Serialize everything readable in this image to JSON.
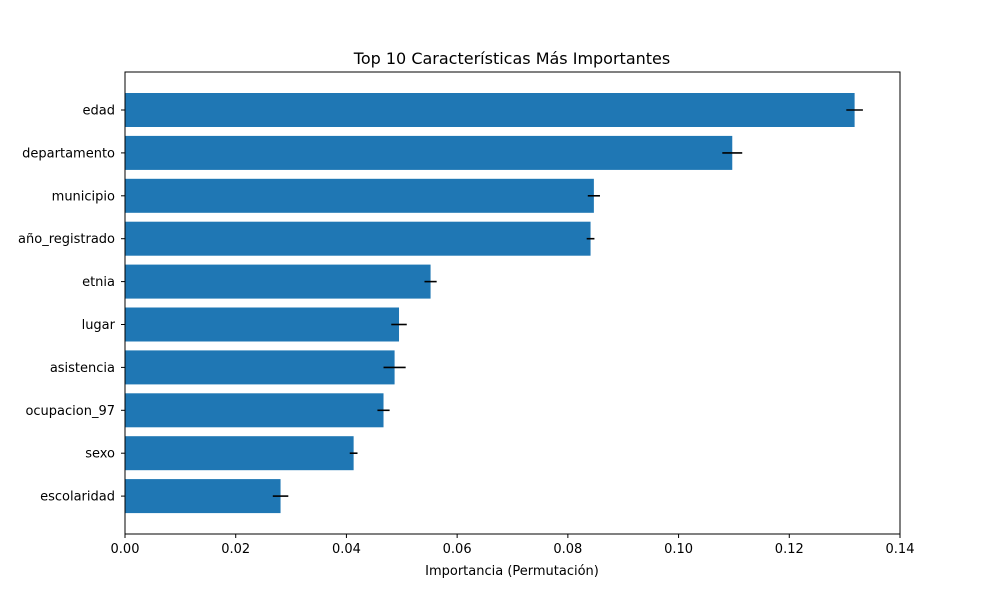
{
  "chart_data": {
    "type": "bar",
    "orientation": "horizontal",
    "title": "Top 10 Características Más Importantes",
    "xlabel": "Importancia (Permutación)",
    "ylabel": "",
    "categories": [
      "edad",
      "departamento",
      "municipio",
      "año_registrado",
      "etnia",
      "lugar",
      "asistencia",
      "ocupacion_97",
      "sexo",
      "escolaridad"
    ],
    "values": [
      0.1318,
      0.1097,
      0.0847,
      0.0841,
      0.0552,
      0.0495,
      0.0487,
      0.0467,
      0.0413,
      0.0281
    ],
    "errors": [
      0.0015,
      0.0018,
      0.0011,
      0.0007,
      0.0011,
      0.0014,
      0.002,
      0.0011,
      0.0007,
      0.0014
    ],
    "xlim": [
      0.0,
      0.14
    ],
    "xticks": [
      "0.00",
      "0.02",
      "0.04",
      "0.06",
      "0.08",
      "0.10",
      "0.12",
      "0.14"
    ],
    "grid": false,
    "legend": "none",
    "bar_color": "#1f77b4",
    "error_color": "#000000"
  }
}
